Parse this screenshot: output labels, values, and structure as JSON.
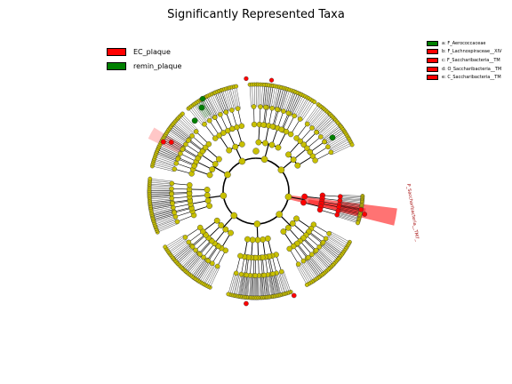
{
  "title": "Significantly Represented Taxa",
  "legend": [
    {
      "label": "EC_plaque",
      "color": "#ff0000"
    },
    {
      "label": "remin_plaque",
      "color": "#008000"
    }
  ],
  "taxa_key": [
    {
      "text": "a: F_Aerococcaceae",
      "color": "#008000"
    },
    {
      "text": "b: F_Lachnospiraceae__XIV",
      "color": "#ff0000"
    },
    {
      "text": "c: F_Saccharibacteria__TM",
      "color": "#ff0000"
    },
    {
      "text": "d: O_Saccharibacteria__TM",
      "color": "#ff0000"
    },
    {
      "text": "e: C_Saccharibacteria__TM",
      "color": "#ff0000"
    }
  ],
  "clade_label": "P_Saccharibacteria__TM7_",
  "colors": {
    "node_default": "#c8c000",
    "ec_plaque": "#ff0000",
    "remin_plaque": "#008000",
    "edge": "#000000"
  }
}
